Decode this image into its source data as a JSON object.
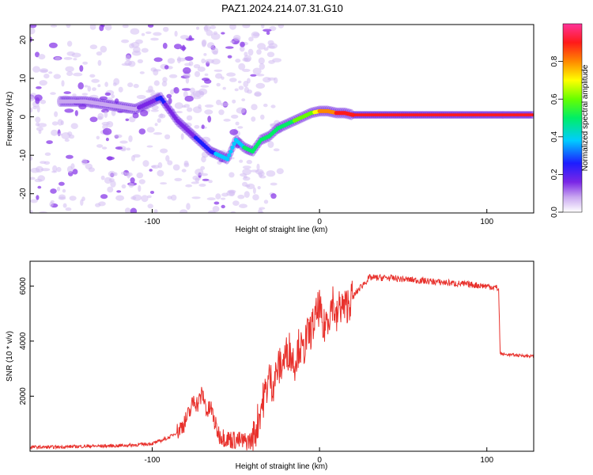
{
  "figure": {
    "title": "PAZ1.2024.214.07.31.G10"
  },
  "chart_data": [
    {
      "type": "heatmap",
      "title": "PAZ1.2024.214.07.31.G10",
      "xlabel": "Height of straight line (km)",
      "ylabel": "Frequency (Hz)",
      "xlim": [
        -173,
        128
      ],
      "ylim": [
        -25,
        24
      ],
      "xticks": [
        -100,
        0,
        100
      ],
      "yticks": [
        -20,
        -10,
        0,
        10,
        20
      ],
      "colorbar": {
        "label": "Normalized spectral amplitude",
        "range": [
          0,
          1
        ],
        "ticks": [
          0.0,
          0.2,
          0.4,
          0.6,
          0.8
        ],
        "colormap": "rainbow (white-purple-blue-cyan-green-yellow-orange-red-pink)"
      },
      "ridge_trace": {
        "x": [
          -155,
          -140,
          -125,
          -110,
          -100,
          -95,
          -90,
          -85,
          -80,
          -75,
          -70,
          -65,
          -60,
          -55,
          -50,
          -45,
          -40,
          -35,
          -30,
          -25,
          -20,
          -15,
          -10,
          -5,
          0,
          5,
          10,
          15,
          20,
          40,
          60,
          80,
          100,
          128
        ],
        "freq": [
          4,
          4,
          3,
          2,
          4,
          5,
          2,
          -1,
          -3,
          -5,
          -7,
          -9,
          -10,
          -11,
          -6,
          -8,
          -9,
          -6,
          -5,
          -3,
          -2,
          -1,
          0,
          1,
          1.5,
          1.5,
          1,
          1,
          0.5,
          0.5,
          0.5,
          0.5,
          0.5,
          0.5
        ],
        "amplitude": [
          0.15,
          0.15,
          0.15,
          0.15,
          0.2,
          0.3,
          0.2,
          0.2,
          0.22,
          0.25,
          0.3,
          0.35,
          0.4,
          0.4,
          0.4,
          0.5,
          0.5,
          0.5,
          0.5,
          0.55,
          0.55,
          0.6,
          0.6,
          0.65,
          0.8,
          0.85,
          0.9,
          0.9,
          0.95,
          0.95,
          0.95,
          0.95,
          0.95,
          0.95
        ]
      },
      "grid": false,
      "legend": "colorbar right"
    },
    {
      "type": "line",
      "xlabel": "Height of straight line (km)",
      "ylabel": "SNR (10 * v/v)",
      "xlim": [
        -173,
        128
      ],
      "ylim": [
        0,
        6900
      ],
      "xticks": [
        -100,
        0,
        100
      ],
      "yticks": [
        2000,
        4000,
        6000
      ],
      "color": "#e8312c",
      "series": [
        {
          "x": [
            -173,
            -160,
            -140,
            -120,
            -110,
            -100,
            -95,
            -90,
            -85,
            -80,
            -77,
            -75,
            -73,
            -70,
            -67,
            -65,
            -62,
            -60,
            -55,
            -50,
            -45,
            -40,
            -38,
            -35,
            -32,
            -30,
            -28,
            -25,
            -22,
            -20,
            -18,
            -15,
            -12,
            -10,
            -8,
            -5,
            -3,
            0,
            2,
            4,
            6,
            8,
            10,
            12,
            15,
            20,
            25,
            30,
            40,
            50,
            60,
            70,
            80,
            90,
            100,
            105,
            107,
            108,
            110,
            115,
            120,
            128
          ],
          "y": [
            150,
            150,
            180,
            200,
            230,
            280,
            380,
            500,
            700,
            1100,
            1500,
            1900,
            1700,
            2100,
            1400,
            1600,
            900,
            600,
            450,
            400,
            350,
            400,
            800,
            1600,
            2200,
            2700,
            2400,
            3000,
            3200,
            3500,
            3700,
            3200,
            3900,
            3500,
            4100,
            4400,
            4700,
            5300,
            4300,
            4800,
            5000,
            5500,
            4700,
            5300,
            5200,
            5600,
            6000,
            6300,
            6300,
            6250,
            6200,
            6150,
            6100,
            6050,
            6000,
            5950,
            5900,
            3550,
            3520,
            3500,
            3480,
            3450
          ]
        }
      ],
      "grid": false,
      "legend": "none"
    }
  ]
}
